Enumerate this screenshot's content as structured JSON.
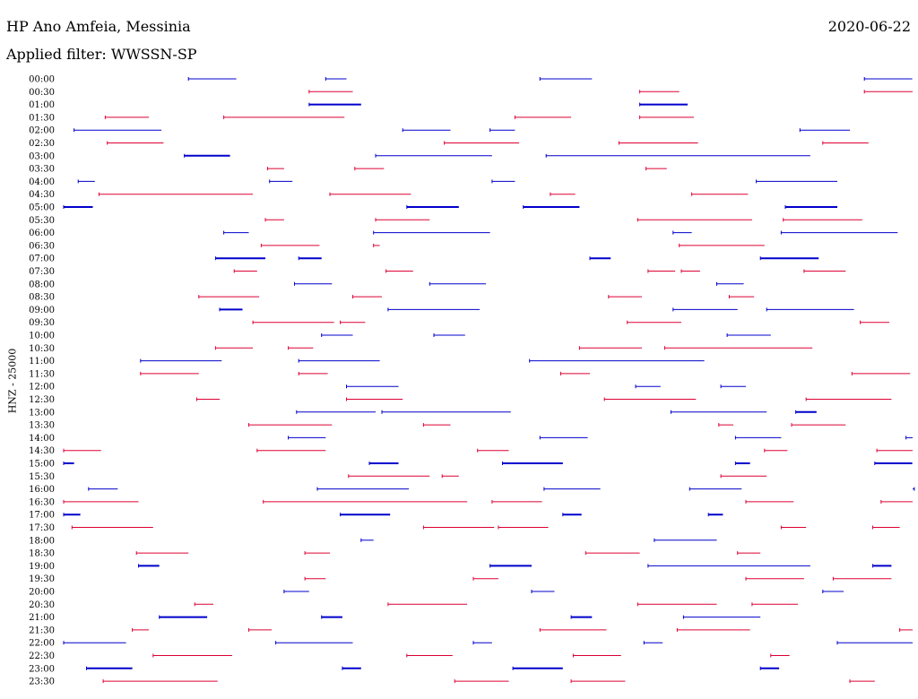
{
  "header": {
    "station": "HP Ano Amfeia, Messinia",
    "date": "2020-06-22",
    "filter": "Applied filter: WWSSN-SP"
  },
  "colors": {
    "even": "#0000cc",
    "odd": "#dd0033"
  },
  "chart_data": {
    "type": "line",
    "title": "HP Ano Amfeia, Messinia",
    "subtitle": "Applied filter: WWSSN-SP",
    "ylabel": "HNZ - 25000",
    "xlabel": "",
    "y_ticks": [
      "00:00",
      "00:30",
      "01:00",
      "01:30",
      "02:00",
      "02:30",
      "03:00",
      "03:30",
      "04:00",
      "04:30",
      "05:00",
      "05:30",
      "06:00",
      "06:30",
      "07:00",
      "07:30",
      "08:00",
      "08:30",
      "09:00",
      "09:30",
      "10:00",
      "10:30",
      "11:00",
      "11:30",
      "12:00",
      "12:30",
      "13:00",
      "13:30",
      "14:00",
      "14:30",
      "15:00",
      "15:30",
      "16:00",
      "16:30",
      "17:00",
      "17:30",
      "18:00",
      "18:30",
      "19:00",
      "19:30",
      "20:00",
      "20:30",
      "21:00",
      "21:30",
      "22:00",
      "22:30",
      "23:00",
      "23:30"
    ],
    "x_range_minutes": [
      0,
      30
    ],
    "grid": false,
    "series": [
      {
        "segments": [
          [
            6.0,
            8.3
          ],
          [
            12.6,
            13.6
          ],
          [
            22.9,
            25.4
          ],
          [
            38.5,
            40.8
          ]
        ]
      },
      {
        "segments": [
          [
            11.8,
            13.9
          ],
          [
            27.7,
            29.6
          ],
          [
            38.5,
            41.2
          ]
        ]
      },
      {
        "segments": [
          [
            11.8,
            14.3
          ],
          [
            27.7,
            30.0
          ]
        ]
      },
      {
        "segments": [
          [
            2.0,
            4.1
          ],
          [
            7.7,
            13.5
          ],
          [
            21.7,
            24.4
          ],
          [
            27.7,
            30.3
          ]
        ]
      },
      {
        "segments": [
          [
            0.5,
            4.7
          ],
          [
            16.3,
            18.6
          ],
          [
            20.5,
            21.7
          ],
          [
            35.4,
            37.8
          ]
        ]
      },
      {
        "segments": [
          [
            2.1,
            4.8
          ],
          [
            18.3,
            21.9
          ],
          [
            26.7,
            30.5
          ],
          [
            36.5,
            38.7
          ]
        ]
      },
      {
        "segments": [
          [
            5.8,
            8.0
          ],
          [
            15.0,
            20.6
          ],
          [
            23.2,
            35.9
          ]
        ]
      },
      {
        "segments": [
          [
            9.8,
            10.6
          ],
          [
            14.0,
            15.4
          ],
          [
            28.0,
            29.0
          ]
        ]
      },
      {
        "segments": [
          [
            0.7,
            1.5
          ],
          [
            9.9,
            11.0
          ],
          [
            20.6,
            21.7
          ],
          [
            33.3,
            37.2
          ]
        ]
      },
      {
        "segments": [
          [
            1.7,
            9.1
          ],
          [
            12.8,
            16.7
          ],
          [
            23.4,
            24.6
          ],
          [
            30.2,
            32.9
          ]
        ]
      },
      {
        "segments": [
          [
            0.0,
            1.4
          ],
          [
            16.5,
            19.0
          ],
          [
            22.1,
            24.8
          ],
          [
            34.7,
            37.2
          ]
        ]
      },
      {
        "segments": [
          [
            9.7,
            10.6
          ],
          [
            15.0,
            17.6
          ],
          [
            27.6,
            33.1
          ],
          [
            34.6,
            38.4
          ]
        ]
      },
      {
        "segments": [
          [
            7.7,
            8.9
          ],
          [
            14.9,
            20.5
          ],
          [
            29.3,
            30.2
          ],
          [
            34.5,
            40.1
          ]
        ]
      },
      {
        "segments": [
          [
            9.5,
            12.3
          ],
          [
            14.9,
            15.2
          ],
          [
            29.6,
            33.7
          ]
        ]
      },
      {
        "segments": [
          [
            7.3,
            9.7
          ],
          [
            11.3,
            12.4
          ],
          [
            25.3,
            26.3
          ],
          [
            33.5,
            36.3
          ]
        ]
      },
      {
        "segments": [
          [
            8.2,
            9.3
          ],
          [
            15.5,
            16.8
          ],
          [
            28.1,
            29.4
          ],
          [
            29.7,
            30.6
          ],
          [
            35.6,
            37.6
          ]
        ]
      },
      {
        "segments": [
          [
            11.1,
            12.9
          ],
          [
            17.6,
            20.3
          ],
          [
            31.4,
            32.7
          ]
        ]
      },
      {
        "segments": [
          [
            6.5,
            9.4
          ],
          [
            13.9,
            15.3
          ],
          [
            26.2,
            27.8
          ],
          [
            32.0,
            33.2
          ]
        ]
      },
      {
        "segments": [
          [
            7.5,
            8.6
          ],
          [
            15.6,
            20.0
          ],
          [
            29.3,
            32.4
          ],
          [
            33.8,
            38.0
          ]
        ]
      },
      {
        "segments": [
          [
            9.1,
            13.0
          ],
          [
            13.3,
            14.5
          ],
          [
            27.1,
            29.7
          ],
          [
            38.3,
            39.7
          ]
        ]
      },
      {
        "segments": [
          [
            12.4,
            13.9
          ],
          [
            17.8,
            19.3
          ],
          [
            31.9,
            34.0
          ]
        ]
      },
      {
        "segments": [
          [
            7.3,
            9.1
          ],
          [
            10.8,
            12.0
          ],
          [
            24.8,
            27.8
          ],
          [
            28.9,
            36.0
          ]
        ]
      },
      {
        "segments": [
          [
            3.7,
            7.6
          ],
          [
            11.3,
            15.2
          ],
          [
            22.4,
            30.8
          ]
        ]
      },
      {
        "segments": [
          [
            3.7,
            6.5
          ],
          [
            11.3,
            12.7
          ],
          [
            23.9,
            25.3
          ],
          [
            37.9,
            40.7
          ]
        ]
      },
      {
        "segments": [
          [
            13.6,
            16.1
          ],
          [
            27.5,
            28.7
          ],
          [
            31.6,
            32.8
          ]
        ]
      },
      {
        "segments": [
          [
            6.4,
            7.5
          ],
          [
            13.6,
            16.3
          ],
          [
            26.0,
            30.4
          ],
          [
            35.7,
            39.8
          ]
        ]
      },
      {
        "segments": [
          [
            11.2,
            15.0
          ],
          [
            15.3,
            21.5
          ],
          [
            29.2,
            33.8
          ],
          [
            35.2,
            36.2
          ]
        ]
      },
      {
        "segments": [
          [
            8.9,
            12.9
          ],
          [
            17.3,
            18.6
          ],
          [
            31.5,
            32.2
          ],
          [
            35.0,
            37.6
          ]
        ]
      },
      {
        "segments": [
          [
            10.8,
            12.6
          ],
          [
            22.9,
            25.2
          ],
          [
            32.3,
            34.5
          ],
          [
            40.5,
            41.2
          ]
        ]
      },
      {
        "segments": [
          [
            0.0,
            1.8
          ],
          [
            9.3,
            12.6
          ],
          [
            19.9,
            21.4
          ],
          [
            33.7,
            34.8
          ],
          [
            39.1,
            41.3
          ]
        ]
      },
      {
        "segments": [
          [
            0.0,
            0.5
          ],
          [
            14.7,
            16.1
          ],
          [
            21.1,
            24.0
          ],
          [
            32.3,
            33.0
          ],
          [
            39.0,
            40.8
          ]
        ]
      },
      {
        "segments": [
          [
            13.7,
            17.6
          ],
          [
            18.2,
            19.0
          ],
          [
            31.6,
            33.8
          ]
        ]
      },
      {
        "segments": [
          [
            1.2,
            2.6
          ],
          [
            12.2,
            16.6
          ],
          [
            23.1,
            25.8
          ],
          [
            30.1,
            32.6
          ],
          [
            40.9,
            41.2
          ]
        ]
      },
      {
        "segments": [
          [
            0.0,
            3.6
          ],
          [
            9.6,
            19.4
          ],
          [
            20.6,
            23.0
          ],
          [
            32.8,
            35.1
          ],
          [
            39.3,
            41.2
          ]
        ]
      },
      {
        "segments": [
          [
            0.0,
            0.8
          ],
          [
            13.3,
            15.7
          ],
          [
            24.0,
            24.9
          ],
          [
            31.0,
            31.7
          ]
        ]
      },
      {
        "segments": [
          [
            0.4,
            4.3
          ],
          [
            17.3,
            20.7
          ],
          [
            20.9,
            23.3
          ],
          [
            34.5,
            35.7
          ],
          [
            38.9,
            40.2
          ]
        ]
      },
      {
        "segments": [
          [
            14.3,
            14.9
          ],
          [
            28.4,
            31.4
          ]
        ]
      },
      {
        "segments": [
          [
            3.5,
            6.0
          ],
          [
            11.6,
            12.8
          ],
          [
            25.1,
            27.7
          ],
          [
            32.4,
            33.5
          ]
        ]
      },
      {
        "segments": [
          [
            3.6,
            4.6
          ],
          [
            20.5,
            22.5
          ],
          [
            28.1,
            35.9
          ],
          [
            38.9,
            39.8
          ]
        ]
      },
      {
        "segments": [
          [
            11.6,
            12.6
          ],
          [
            19.7,
            20.9
          ],
          [
            32.8,
            35.6
          ],
          [
            37.0,
            39.8
          ]
        ]
      },
      {
        "segments": [
          [
            10.6,
            11.8
          ],
          [
            22.5,
            23.6
          ],
          [
            36.5,
            37.5
          ]
        ]
      },
      {
        "segments": [
          [
            6.3,
            7.2
          ],
          [
            15.6,
            19.4
          ],
          [
            27.6,
            31.4
          ],
          [
            33.1,
            35.3
          ]
        ]
      },
      {
        "segments": [
          [
            4.6,
            6.9
          ],
          [
            12.4,
            13.4
          ],
          [
            24.4,
            25.4
          ],
          [
            29.8,
            33.5
          ]
        ]
      },
      {
        "segments": [
          [
            3.3,
            4.1
          ],
          [
            8.9,
            10.0
          ],
          [
            22.9,
            26.1
          ],
          [
            29.5,
            33.0
          ],
          [
            40.2,
            41.1
          ]
        ]
      },
      {
        "segments": [
          [
            0.0,
            3.0
          ],
          [
            10.2,
            13.9
          ],
          [
            19.7,
            20.6
          ],
          [
            27.9,
            28.8
          ],
          [
            37.2,
            41.0
          ]
        ]
      },
      {
        "segments": [
          [
            4.3,
            8.1
          ],
          [
            16.5,
            18.7
          ],
          [
            24.5,
            26.8
          ],
          [
            34.0,
            34.9
          ]
        ]
      },
      {
        "segments": [
          [
            1.1,
            3.3
          ],
          [
            13.4,
            14.3
          ],
          [
            21.6,
            24.0
          ],
          [
            33.5,
            34.4
          ]
        ]
      },
      {
        "segments": [
          [
            1.9,
            7.4
          ],
          [
            18.8,
            21.4
          ],
          [
            24.4,
            27.0
          ],
          [
            37.8,
            39.0
          ]
        ]
      }
    ]
  }
}
